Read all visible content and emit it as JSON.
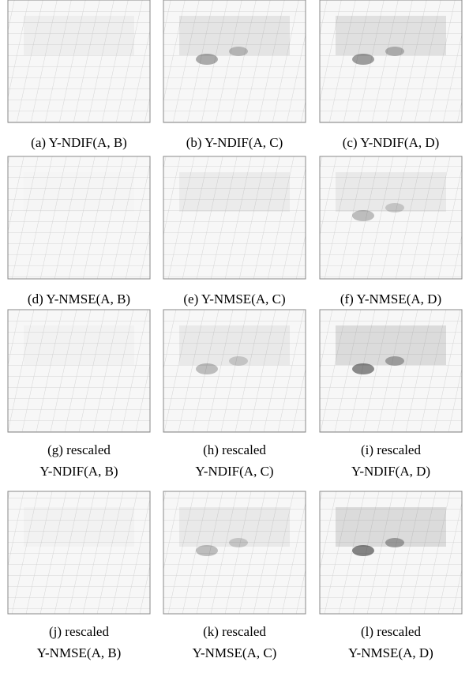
{
  "figure": {
    "panels": [
      {
        "caption": [
          "(a) Y-NDIF(A, B)"
        ]
      },
      {
        "caption": [
          "(b) Y-NDIF(A, C)"
        ]
      },
      {
        "caption": [
          "(c) Y-NDIF(A, D)"
        ]
      },
      {
        "caption": [
          "(d) Y-NMSE(A, B)"
        ]
      },
      {
        "caption": [
          "(e) Y-NMSE(A, C)"
        ]
      },
      {
        "caption": [
          "(f) Y-NMSE(A, D)"
        ]
      },
      {
        "caption": [
          "(g) rescaled",
          "Y-NDIF(A, B)"
        ]
      },
      {
        "caption": [
          "(h) rescaled",
          "Y-NDIF(A, C)"
        ]
      },
      {
        "caption": [
          "(i) rescaled",
          "Y-NDIF(A, D)"
        ]
      },
      {
        "caption": [
          "(j) rescaled",
          "Y-NMSE(A, B)"
        ]
      },
      {
        "caption": [
          "(k) rescaled",
          "Y-NMSE(A, C)"
        ]
      },
      {
        "caption": [
          "(l) rescaled",
          "Y-NMSE(A, D)"
        ]
      }
    ]
  }
}
